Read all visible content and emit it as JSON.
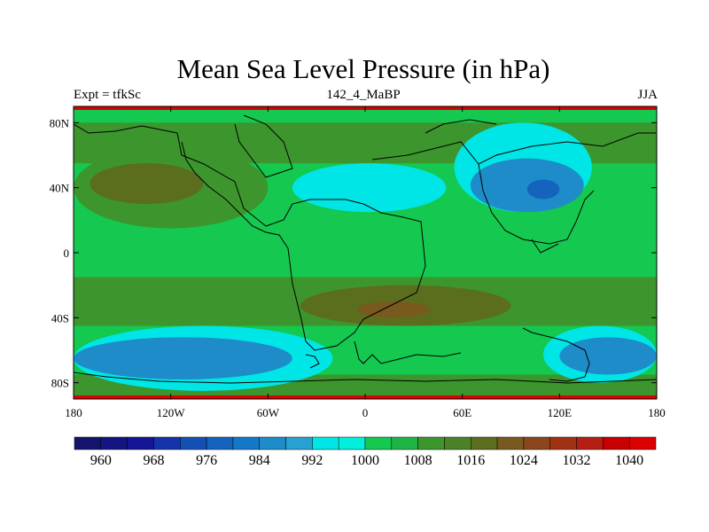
{
  "chart_data": {
    "type": "heatmap",
    "title": "Mean Sea Level Pressure (in hPa)",
    "left_label": "Expt = tfkSc",
    "center_label": "142_4_MaBP",
    "right_label": "JJA",
    "units": "hPa",
    "x_range": [
      -180,
      180
    ],
    "y_range": [
      -90,
      90
    ],
    "x_ticks": [
      {
        "value": -180,
        "label": "180"
      },
      {
        "value": -120,
        "label": "120W"
      },
      {
        "value": -60,
        "label": "60W"
      },
      {
        "value": 0,
        "label": "0"
      },
      {
        "value": 60,
        "label": "60E"
      },
      {
        "value": 120,
        "label": "120E"
      },
      {
        "value": 180,
        "label": "180"
      }
    ],
    "y_ticks": [
      {
        "value": 80,
        "label": "80N"
      },
      {
        "value": 40,
        "label": "40N"
      },
      {
        "value": 0,
        "label": "0"
      },
      {
        "value": -40,
        "label": "40S"
      },
      {
        "value": -80,
        "label": "80S"
      }
    ],
    "colorbar": {
      "levels": [
        960,
        964,
        968,
        972,
        976,
        980,
        984,
        988,
        992,
        996,
        1000,
        1004,
        1008,
        1012,
        1016,
        1020,
        1024,
        1028,
        1032,
        1036,
        1040
      ],
      "colors": [
        "#14146e",
        "#141482",
        "#141496",
        "#1432aa",
        "#1450b4",
        "#1464be",
        "#1478c8",
        "#1e8cc8",
        "#28a0d2",
        "#00e6e6",
        "#00f0dc",
        "#14c850",
        "#1eb446",
        "#3c962d",
        "#4b8228",
        "#5a6e1e",
        "#785a1e",
        "#8c461e",
        "#a03214",
        "#b41e14",
        "#c80000",
        "#dc0000"
      ],
      "labels": [
        "960",
        "968",
        "976",
        "984",
        "992",
        "1000",
        "1008",
        "1016",
        "1024",
        "1032",
        "1040"
      ]
    },
    "regions": [
      {
        "value": 1000,
        "lon": [
          -180,
          180
        ],
        "lat": [
          -90,
          90
        ],
        "shape": "background"
      },
      {
        "value": 1008,
        "lon": [
          -180,
          180
        ],
        "lat": [
          55,
          80
        ],
        "shape": "band"
      },
      {
        "value": 1008,
        "lon": [
          -180,
          -60
        ],
        "lat": [
          15,
          65
        ],
        "shape": "blob"
      },
      {
        "value": 1016,
        "lon": [
          -170,
          -100
        ],
        "lat": [
          30,
          55
        ],
        "shape": "blob"
      },
      {
        "value": 1008,
        "lon": [
          -180,
          180
        ],
        "lat": [
          -45,
          -15
        ],
        "shape": "band"
      },
      {
        "value": 1016,
        "lon": [
          -40,
          90
        ],
        "lat": [
          -45,
          -20
        ],
        "shape": "blob"
      },
      {
        "value": 1020,
        "lon": [
          -5,
          40
        ],
        "lat": [
          -40,
          -30
        ],
        "shape": "blob"
      },
      {
        "value": 1008,
        "lon": [
          -180,
          180
        ],
        "lat": [
          -90,
          -75
        ],
        "shape": "band"
      },
      {
        "value": 992,
        "lon": [
          -180,
          -20
        ],
        "lat": [
          -85,
          -45
        ],
        "shape": "blob"
      },
      {
        "value": 984,
        "lon": [
          -180,
          -45
        ],
        "lat": [
          -78,
          -52
        ],
        "shape": "blob"
      },
      {
        "value": 992,
        "lon": [
          110,
          180
        ],
        "lat": [
          -80,
          -45
        ],
        "shape": "blob"
      },
      {
        "value": 984,
        "lon": [
          120,
          180
        ],
        "lat": [
          -75,
          -52
        ],
        "shape": "blob"
      },
      {
        "value": 992,
        "lon": [
          -45,
          50
        ],
        "lat": [
          25,
          55
        ],
        "shape": "blob"
      },
      {
        "value": 992,
        "lon": [
          55,
          140
        ],
        "lat": [
          25,
          80
        ],
        "shape": "blob"
      },
      {
        "value": 984,
        "lon": [
          65,
          135
        ],
        "lat": [
          25,
          58
        ],
        "shape": "blob"
      },
      {
        "value": 976,
        "lon": [
          100,
          120
        ],
        "lat": [
          33,
          45
        ],
        "shape": "blob"
      }
    ]
  }
}
